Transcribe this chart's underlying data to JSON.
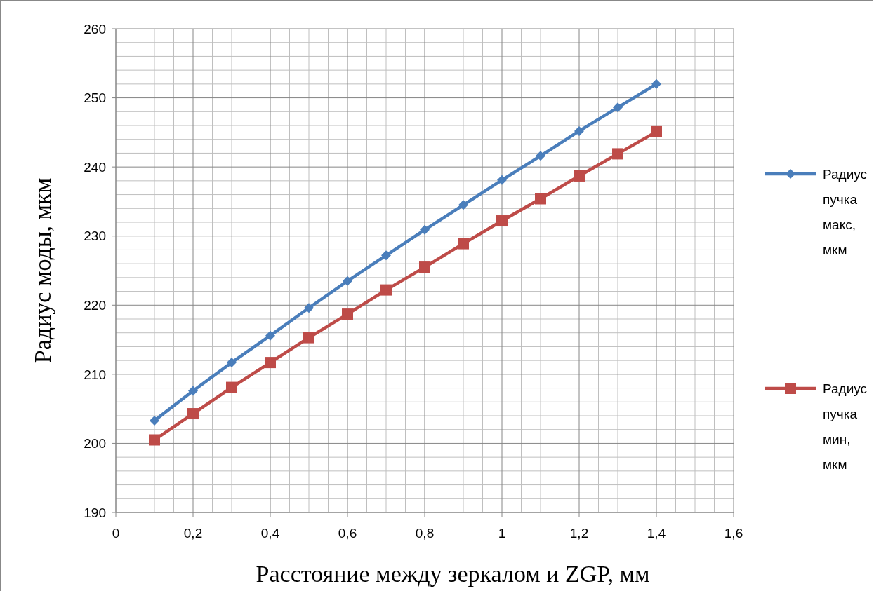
{
  "chart_data": {
    "type": "line",
    "xlabel": "Расстояние между зеркалом и ZGP, мм",
    "ylabel": "Радиус моды, мкм",
    "x": [
      0.1,
      0.2,
      0.3,
      0.4,
      0.5,
      0.6,
      0.7,
      0.8,
      0.9,
      1,
      1.1,
      1.2,
      1.3,
      1.4
    ],
    "series": [
      {
        "name": "Радиус пучка макс, мкм",
        "color": "#4a7ebb",
        "marker": "diamond",
        "values": [
          203.3,
          207.6,
          211.7,
          215.6,
          219.6,
          223.5,
          227.2,
          230.9,
          234.5,
          238.1,
          241.6,
          245.2,
          248.6,
          252
        ]
      },
      {
        "name": "Радиус пучка мин, мкм",
        "color": "#be4b48",
        "marker": "square",
        "values": [
          200.5,
          204.3,
          208.1,
          211.7,
          215.3,
          218.7,
          222.2,
          225.5,
          228.9,
          232.2,
          235.4,
          238.7,
          241.9,
          245.1
        ]
      }
    ],
    "xlim": [
      0,
      1.6
    ],
    "xticks": [
      0,
      {
        "value": 0.2,
        "label": "0,2"
      },
      {
        "value": 0.4,
        "label": "0,4"
      },
      {
        "value": 0.6,
        "label": "0,6"
      },
      {
        "value": 0.8,
        "label": "0,8"
      },
      1,
      {
        "value": 1.2,
        "label": "1,2"
      },
      {
        "value": 1.4,
        "label": "1,4"
      },
      {
        "value": 1.6,
        "label": "1,6"
      }
    ],
    "ylim": [
      190,
      260
    ],
    "yticks": [
      190,
      200,
      210,
      220,
      230,
      240,
      250,
      260
    ],
    "grid": true,
    "legend": "right",
    "line_style": "solid"
  }
}
